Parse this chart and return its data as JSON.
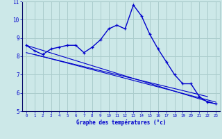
{
  "xlabel": "Graphe des températures (°c)",
  "bg_color": "#cce8e8",
  "line_color": "#0000cc",
  "grid_color": "#aacccc",
  "hours": [
    0,
    1,
    2,
    3,
    4,
    5,
    6,
    7,
    8,
    9,
    10,
    11,
    12,
    13,
    14,
    15,
    16,
    17,
    18,
    19,
    20,
    21,
    22,
    23
  ],
  "temps": [
    8.6,
    8.3,
    8.1,
    8.4,
    8.5,
    8.6,
    8.6,
    8.2,
    8.5,
    8.9,
    9.5,
    9.7,
    9.5,
    10.8,
    10.2,
    9.2,
    8.4,
    7.7,
    7.0,
    6.5,
    6.5,
    5.8,
    5.5,
    5.4
  ],
  "trend1_x": [
    0,
    23
  ],
  "trend1_y": [
    8.6,
    5.4
  ],
  "trend2_x": [
    0,
    22
  ],
  "trend2_y": [
    8.2,
    5.8
  ],
  "trend3_x": [
    1,
    23
  ],
  "trend3_y": [
    8.1,
    5.5
  ],
  "ylim": [
    5,
    11
  ],
  "xlim": [
    -0.5,
    23.5
  ],
  "yticks": [
    5,
    6,
    7,
    8,
    9,
    10,
    11
  ],
  "xticks": [
    0,
    1,
    2,
    3,
    4,
    5,
    6,
    7,
    8,
    9,
    10,
    11,
    12,
    13,
    14,
    15,
    16,
    17,
    18,
    19,
    20,
    21,
    22,
    23
  ]
}
